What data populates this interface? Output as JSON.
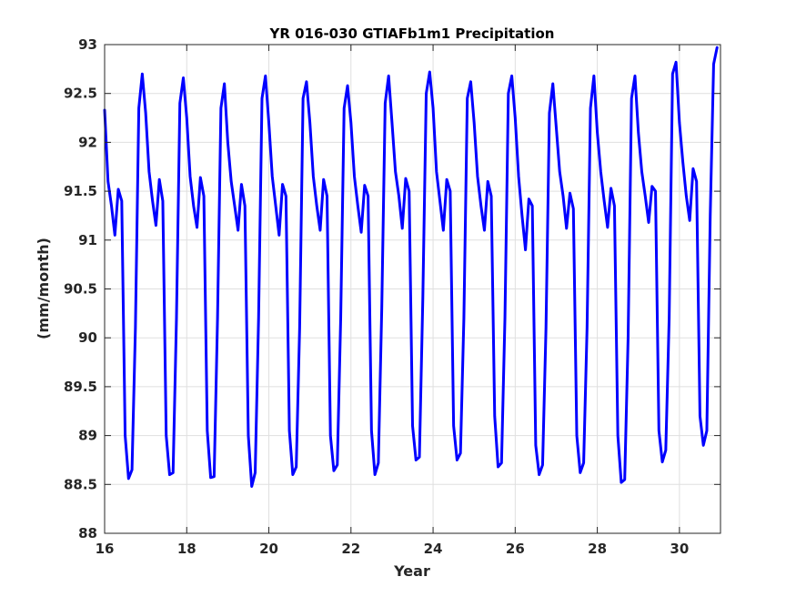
{
  "chart_data": {
    "type": "line",
    "title": "YR 016-030 GTIAFb1m1 Precipitation",
    "xlabel": "Year",
    "ylabel": "(mm/month)",
    "xlim": [
      16,
      31
    ],
    "ylim": [
      88,
      93
    ],
    "xticks": [
      16,
      18,
      20,
      22,
      24,
      26,
      28,
      30
    ],
    "yticks": [
      88,
      88.5,
      89,
      89.5,
      90,
      90.5,
      91,
      91.5,
      92,
      92.5,
      93
    ],
    "xtick_labels": [
      "16",
      "18",
      "20",
      "22",
      "24",
      "26",
      "28",
      "30"
    ],
    "ytick_labels": [
      "88",
      "88.5",
      "89",
      "89.5",
      "90",
      "90.5",
      "91",
      "91.5",
      "92",
      "92.5",
      "93"
    ],
    "grid": true,
    "colors": {
      "line": "#0000ff",
      "grid": "#dfdfdf",
      "axes": "#262626"
    },
    "series": [
      {
        "x": [
          16.0,
          16.083,
          16.167,
          16.25,
          16.333,
          16.417,
          16.5,
          16.583,
          16.667,
          16.75,
          16.833,
          16.917,
          17.0,
          17.083,
          17.167,
          17.25,
          17.333,
          17.417,
          17.5,
          17.583,
          17.667,
          17.75,
          17.833,
          17.917,
          18.0,
          18.083,
          18.167,
          18.25,
          18.333,
          18.417,
          18.5,
          18.583,
          18.667,
          18.75,
          18.833,
          18.917,
          19.0,
          19.083,
          19.167,
          19.25,
          19.333,
          19.417,
          19.5,
          19.583,
          19.667,
          19.75,
          19.833,
          19.917,
          20.0,
          20.083,
          20.167,
          20.25,
          20.333,
          20.417,
          20.5,
          20.583,
          20.667,
          20.75,
          20.833,
          20.917,
          21.0,
          21.083,
          21.167,
          21.25,
          21.333,
          21.417,
          21.5,
          21.583,
          21.667,
          21.75,
          21.833,
          21.917,
          22.0,
          22.083,
          22.167,
          22.25,
          22.333,
          22.417,
          22.5,
          22.583,
          22.667,
          22.75,
          22.833,
          22.917,
          23.0,
          23.083,
          23.167,
          23.25,
          23.333,
          23.417,
          23.5,
          23.583,
          23.667,
          23.75,
          23.833,
          23.917,
          24.0,
          24.083,
          24.167,
          24.25,
          24.333,
          24.417,
          24.5,
          24.583,
          24.667,
          24.75,
          24.833,
          24.917,
          25.0,
          25.083,
          25.167,
          25.25,
          25.333,
          25.417,
          25.5,
          25.583,
          25.667,
          25.75,
          25.833,
          25.917,
          26.0,
          26.083,
          26.167,
          26.25,
          26.333,
          26.417,
          26.5,
          26.583,
          26.667,
          26.75,
          26.833,
          26.917,
          27.0,
          27.083,
          27.167,
          27.25,
          27.333,
          27.417,
          27.5,
          27.583,
          27.667,
          27.75,
          27.833,
          27.917,
          28.0,
          28.083,
          28.167,
          28.25,
          28.333,
          28.417,
          28.5,
          28.583,
          28.667,
          28.75,
          28.833,
          28.917,
          29.0,
          29.083,
          29.167,
          29.25,
          29.333,
          29.417,
          29.5,
          29.583,
          29.667,
          29.75,
          29.833,
          29.917,
          30.0,
          30.083,
          30.167,
          30.25,
          30.333,
          30.417,
          30.5,
          30.583,
          30.667,
          30.75,
          30.833,
          30.917
        ],
        "y": [
          92.33,
          91.6,
          91.35,
          91.05,
          91.52,
          91.4,
          89.0,
          88.56,
          88.65,
          90.1,
          92.35,
          92.7,
          92.3,
          91.7,
          91.4,
          91.15,
          91.62,
          91.4,
          89.0,
          88.6,
          88.62,
          90.2,
          92.4,
          92.66,
          92.25,
          91.65,
          91.35,
          91.13,
          91.64,
          91.45,
          89.05,
          88.57,
          88.58,
          90.2,
          92.35,
          92.6,
          92.0,
          91.6,
          91.35,
          91.1,
          91.57,
          91.35,
          89.0,
          88.48,
          88.62,
          90.2,
          92.45,
          92.68,
          92.2,
          91.65,
          91.35,
          91.05,
          91.57,
          91.45,
          89.05,
          88.6,
          88.68,
          90.1,
          92.45,
          92.62,
          92.2,
          91.65,
          91.35,
          91.1,
          91.62,
          91.45,
          89.0,
          88.64,
          88.7,
          90.2,
          92.35,
          92.58,
          92.2,
          91.65,
          91.35,
          91.08,
          91.56,
          91.45,
          89.05,
          88.6,
          88.72,
          90.3,
          92.4,
          92.68,
          92.2,
          91.7,
          91.45,
          91.12,
          91.63,
          91.5,
          89.1,
          88.75,
          88.78,
          90.4,
          92.5,
          92.72,
          92.35,
          91.7,
          91.4,
          91.1,
          91.62,
          91.5,
          89.1,
          88.75,
          88.82,
          90.2,
          92.45,
          92.62,
          92.2,
          91.65,
          91.35,
          91.1,
          91.6,
          91.45,
          89.2,
          88.68,
          88.72,
          90.2,
          92.5,
          92.68,
          92.25,
          91.65,
          91.25,
          90.9,
          91.42,
          91.35,
          88.9,
          88.6,
          88.7,
          90.1,
          92.3,
          92.6,
          92.15,
          91.7,
          91.45,
          91.12,
          91.48,
          91.32,
          89.0,
          88.62,
          88.72,
          90.1,
          92.35,
          92.68,
          92.1,
          91.7,
          91.4,
          91.13,
          91.53,
          91.35,
          89.0,
          88.52,
          88.55,
          90.0,
          92.45,
          92.68,
          92.1,
          91.7,
          91.45,
          91.18,
          91.55,
          91.5,
          89.05,
          88.73,
          88.85,
          90.2,
          92.7,
          92.82,
          92.2,
          91.8,
          91.45,
          91.2,
          91.73,
          91.6,
          89.2,
          88.9,
          89.05,
          91.25,
          92.8,
          92.97
        ]
      }
    ]
  }
}
